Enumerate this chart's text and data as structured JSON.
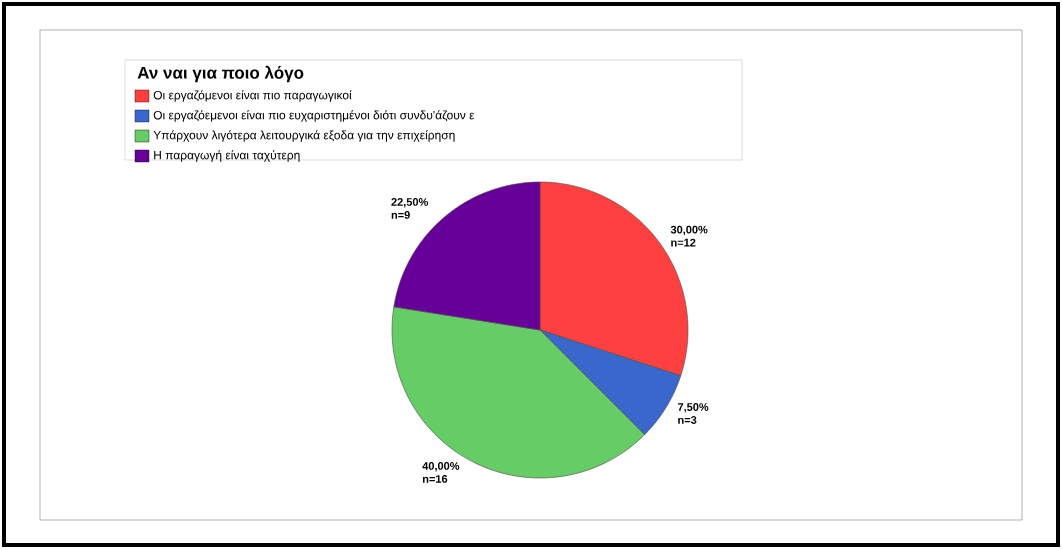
{
  "chart_data": {
    "type": "pie",
    "legend_title": "Αν ναι για ποιο λόγο",
    "legend": "top left",
    "categories": [
      "Οι εργαζόμενοι είναι πιο παραγωγικοί",
      "Οι εργαζόεμενοι είναι πιο ευχαριστημένοι διότι συνδυ'άζουν ε",
      "Υπάρχουν λιγότερα λειτουργικά εξοδα για την επιχείρηση",
      "Η παραγωγή είναι ταχύτερη"
    ],
    "values": [
      30,
      7.5,
      40,
      22.5
    ],
    "colors": [
      "#ff4040",
      "#3a67cc",
      "#66cc66",
      "#660099"
    ],
    "value_labels": [
      "30,00% n=12",
      "7,50% n=3",
      "40,00% n=16",
      "22,50% n=9"
    ]
  }
}
